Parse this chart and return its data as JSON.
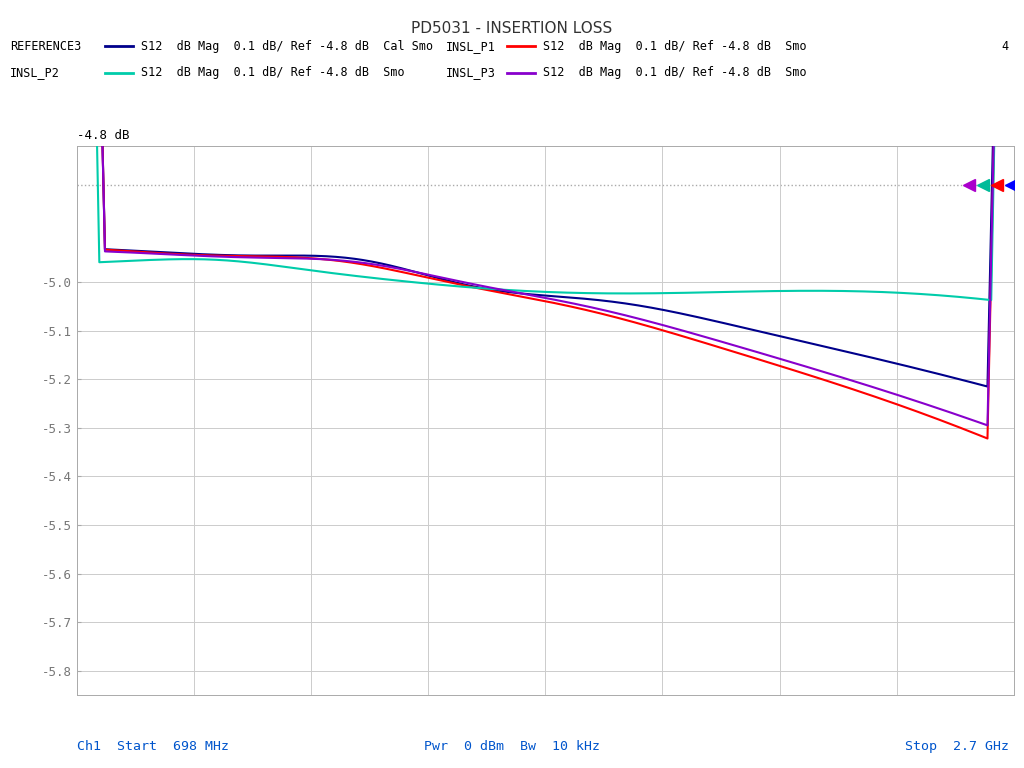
{
  "title": "PD5031 - INSERTION LOSS",
  "title_fontsize": 11,
  "xlabel_left": "Ch1  Start  698 MHz",
  "xlabel_center": "Pwr  0 dBm  Bw  10 kHz",
  "xlabel_right": "Stop  2.7 GHz",
  "ref_label": "-4.8 dB",
  "ref_value": -4.8,
  "ylim": [
    -5.85,
    -4.72
  ],
  "yticks": [
    -5.8,
    -5.7,
    -5.6,
    -5.5,
    -5.4,
    -5.3,
    -5.2,
    -5.1,
    -5.0
  ],
  "xstart": 698,
  "xstop": 2700,
  "background_color": "#ffffff",
  "grid_color": "#cccccc",
  "trace_colors": [
    "#00008b",
    "#ff0000",
    "#00ccaa",
    "#8800cc"
  ],
  "marker_colors": [
    "#0000ff",
    "#ff0000",
    "#00bb99",
    "#aa00cc"
  ],
  "legend_entries": [
    {
      "label": "REFERENCE3",
      "desc": "S12  dB Mag  0.1 dB/ Ref -4.8 dB  Cal Smo",
      "color": "#00008b"
    },
    {
      "label": "INSL_P1",
      "desc": "S12  dB Mag  0.1 dB/ Ref -4.8 dB  Smo",
      "color": "#ff0000"
    },
    {
      "label": "INSL_P2",
      "desc": "S12  dB Mag  0.1 dB/ Ref -4.8 dB  Smo",
      "color": "#00ccaa"
    },
    {
      "label": "INSL_P3",
      "desc": "S12  dB Mag  0.1 dB/ Ref -4.8 dB  Smo",
      "color": "#8800cc"
    }
  ],
  "num_points": 500
}
